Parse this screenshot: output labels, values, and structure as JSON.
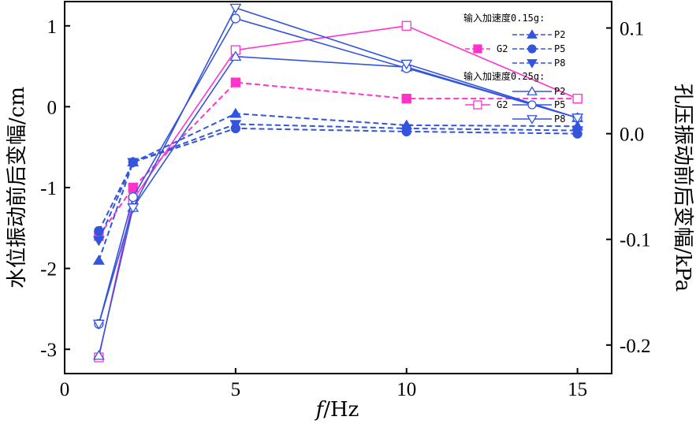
{
  "chart_data": {
    "type": "line",
    "x_label_italic": "f",
    "x_label_unit": "/Hz",
    "ylabel_left": "水位振动前后变幅/cm",
    "ylabel_right": "孔压振动前后变幅/kPa",
    "xlim": [
      0,
      16
    ],
    "ylim_left": [
      -3.3,
      1.3
    ],
    "ylim_right": [
      -0.227,
      0.125
    ],
    "x_ticks": [
      0,
      5,
      10,
      15
    ],
    "y_ticks_left": [
      -3,
      -2,
      -1,
      0,
      1
    ],
    "y_ticks_left_labels": [
      "-3",
      "-2",
      "-1",
      "0",
      "1"
    ],
    "y_ticks_right": [
      -0.2,
      -0.1,
      0.0,
      0.1
    ],
    "y_ticks_right_labels": [
      "-0.2",
      "-0.1",
      "0.0",
      "0.1"
    ],
    "legend_group1_title": "输入加速度0.15g:",
    "legend_group2_title": "输入加速度0.25g:",
    "colors": {
      "blue": "#3355dd",
      "pink": "#ff33cc"
    },
    "series": [
      {
        "name": "G2",
        "group": "0.15g",
        "axis": "left",
        "color": "#ff33cc",
        "dash": true,
        "marker": "square-filled",
        "x": [
          1,
          2,
          5,
          10,
          15
        ],
        "values": [
          -1.6,
          -1.0,
          0.3,
          0.1,
          0.1
        ]
      },
      {
        "name": "P2",
        "group": "0.15g",
        "axis": "right",
        "color": "#3355dd",
        "dash": true,
        "marker": "triangle-up-filled",
        "x": [
          1,
          2,
          5,
          10,
          15
        ],
        "values": [
          -0.12,
          -0.027,
          0.019,
          0.008,
          0.007
        ]
      },
      {
        "name": "P5",
        "group": "0.15g",
        "axis": "right",
        "color": "#3355dd",
        "dash": true,
        "marker": "circle-filled",
        "x": [
          1,
          2,
          5,
          10,
          15
        ],
        "values": [
          -0.092,
          -0.027,
          0.005,
          0.002,
          0.0
        ]
      },
      {
        "name": "P8",
        "group": "0.15g",
        "axis": "right",
        "color": "#3355dd",
        "dash": true,
        "marker": "triangle-down-filled",
        "x": [
          1,
          2,
          5,
          10,
          15
        ],
        "values": [
          -0.101,
          -0.027,
          0.009,
          0.005,
          0.003
        ]
      },
      {
        "name": "G2",
        "group": "0.25g",
        "axis": "left",
        "color": "#ff33cc",
        "dash": false,
        "marker": "square-open",
        "x": [
          1,
          2,
          5,
          10,
          15
        ],
        "values": [
          -3.1,
          -1.15,
          0.7,
          1.0,
          0.1
        ]
      },
      {
        "name": "P2",
        "group": "0.25g",
        "axis": "right",
        "color": "#3355dd",
        "dash": false,
        "marker": "triangle-up-open",
        "x": [
          1,
          2,
          5,
          10,
          15
        ],
        "values": [
          -0.21,
          -0.07,
          0.073,
          0.063,
          0.015
        ]
      },
      {
        "name": "P5",
        "group": "0.25g",
        "axis": "right",
        "color": "#3355dd",
        "dash": false,
        "marker": "circle-open",
        "x": [
          1,
          2,
          5,
          10,
          15
        ],
        "values": [
          -0.18,
          -0.06,
          0.109,
          0.062,
          0.015
        ]
      },
      {
        "name": "P8",
        "group": "0.25g",
        "axis": "right",
        "color": "#3355dd",
        "dash": false,
        "marker": "triangle-down-open",
        "x": [
          1,
          2,
          5,
          10,
          15
        ],
        "values": [
          -0.18,
          -0.07,
          0.119,
          0.066,
          0.015
        ]
      }
    ]
  }
}
